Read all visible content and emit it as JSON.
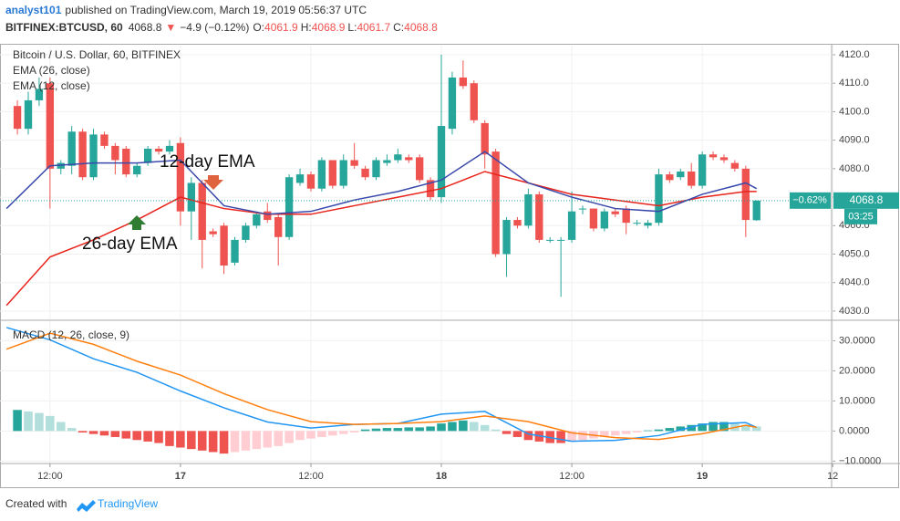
{
  "header": {
    "author": "analyst101",
    "published": "published on TradingView.com, March 19, 2019 05:56:37 UTC",
    "symbol": "BITFINEX:BTCUSD, 60",
    "arrow": "▼",
    "change": "−4.9 (−0.12%)",
    "ohlc_labels": [
      "O:",
      "H:",
      "L:",
      "C:"
    ]
  },
  "footer": {
    "created": "Created with",
    "brand": "TradingView"
  },
  "chart_data": [
    {
      "type": "candlestick",
      "title": "Bitcoin / U.S. Dollar, 60, BITFINEX",
      "up_color": "#26a69a",
      "down_color": "#ef5350",
      "annotations": [
        "12-day EMA",
        "26-day EMA"
      ],
      "last_change": "−0.62%",
      "countdown": "03:25",
      "x": [
        -3,
        -2,
        -1,
        0,
        1,
        2,
        3,
        4,
        5,
        6,
        7,
        8,
        9,
        10,
        11,
        12,
        13,
        14,
        15,
        16,
        17,
        18,
        19,
        20,
        21,
        22,
        23,
        24,
        25,
        26,
        27,
        28,
        29,
        30,
        31,
        32,
        33,
        34,
        35,
        36,
        37,
        38,
        39,
        40,
        41,
        42,
        43,
        44,
        45,
        46,
        47,
        48,
        49,
        50,
        51,
        52,
        53,
        54,
        55,
        56,
        57,
        58,
        59,
        60,
        61,
        62,
        63,
        64,
        65
      ],
      "open": [
        4102,
        4094,
        4104,
        4110,
        4080,
        4081,
        4093,
        4077,
        4092,
        4088,
        4087,
        4078,
        4082,
        4087,
        4086,
        4089,
        4065,
        4075,
        4058,
        4060,
        4047,
        4055,
        4060,
        4065,
        4063,
        4056,
        4075,
        4078,
        4073,
        4083,
        4074,
        4083,
        4080,
        4077,
        4082,
        4083,
        4084,
        4084,
        4076,
        4070,
        4094,
        4112,
        4110,
        4096,
        4086,
        4050,
        4062,
        4060,
        4071,
        4055,
        4055,
        4055,
        4066,
        4066,
        4059,
        4065,
        4066,
        4061,
        4060,
        4061,
        4078,
        4077,
        4079,
        4074,
        4085,
        4084,
        4082,
        4080,
        4061.9
      ],
      "high": [
        4104,
        4107,
        4112,
        4112,
        4083,
        4095,
        4094,
        4094,
        4093,
        4089,
        4088,
        4082,
        4088,
        4088,
        4090,
        4091,
        4077,
        4076,
        4059,
        4061,
        4056,
        4061,
        4065,
        4068,
        4064,
        4078,
        4080,
        4079,
        4084,
        4083,
        4085,
        4089,
        4081,
        4084,
        4085,
        4087,
        4085,
        4085,
        4077,
        4120,
        4114,
        4118,
        4111,
        4097,
        4087,
        4063,
        4063,
        4073,
        4072,
        4056,
        4056,
        4072,
        4067,
        4066,
        4066,
        4066,
        4067,
        4062,
        4062,
        4080,
        4079,
        4080,
        4082,
        4086,
        4086,
        4085,
        4083,
        4081,
        4068.9
      ],
      "low": [
        4092,
        4092,
        4102,
        4066,
        4078,
        4078,
        4076,
        4076,
        4087,
        4078,
        4077,
        4077,
        4081,
        4085,
        4085,
        4060,
        4055,
        4045,
        4056,
        4043,
        4046,
        4054,
        4059,
        4061,
        4046,
        4055,
        4074,
        4072,
        4072,
        4073,
        4073,
        4080,
        4076,
        4076,
        4081,
        4082,
        4082,
        4075,
        4069,
        4068,
        4092,
        4108,
        4096,
        4080,
        4049,
        4042,
        4059,
        4059,
        4054,
        4054,
        4035,
        4054,
        4064,
        4058,
        4058,
        4063,
        4057,
        4060,
        4059,
        4060,
        4075,
        4076,
        4073,
        4073,
        4083,
        4082,
        4079,
        4056,
        4061.7
      ],
      "close": [
        4094,
        4104,
        4108,
        4080,
        4082,
        4093,
        4077,
        4092,
        4088,
        4083,
        4078,
        4081,
        4087,
        4086,
        4088,
        4065,
        4075,
        4055,
        4057,
        4046,
        4055,
        4060,
        4064,
        4062,
        4056,
        4077,
        4078,
        4073,
        4083,
        4074,
        4083,
        4081,
        4077,
        4083,
        4083,
        4085,
        4083,
        4076,
        4070,
        4095,
        4112,
        4109,
        4097,
        4085,
        4050,
        4062,
        4060,
        4071,
        4055,
        4055,
        4055,
        4065,
        4066,
        4059,
        4065,
        4064,
        4061,
        4061,
        4061,
        4078,
        4076,
        4079,
        4074,
        4085,
        4084,
        4083,
        4080,
        4062,
        4068.8
      ],
      "series": [
        {
          "name": "EMA (26, close)",
          "color": "#e8231b",
          "x": [
            -4,
            0,
            4,
            8,
            12,
            16,
            20,
            24,
            28,
            32,
            36,
            40,
            44,
            48,
            52,
            56,
            60,
            64,
            65
          ],
          "values": [
            4032,
            4049,
            4055,
            4062,
            4070,
            4066,
            4064,
            4064,
            4067,
            4070,
            4073,
            4079,
            4075,
            4071,
            4069,
            4067,
            4070,
            4072,
            4072
          ]
        },
        {
          "name": "EMA (12, close)",
          "color": "#3949ab",
          "x": [
            -4,
            0,
            4,
            8,
            12,
            16,
            20,
            24,
            28,
            32,
            36,
            40,
            44,
            48,
            52,
            56,
            60,
            64,
            65
          ],
          "values": [
            4066,
            4081,
            4082,
            4082,
            4083,
            4067,
            4064,
            4065,
            4069,
            4072,
            4076,
            4086,
            4075,
            4070,
            4066,
            4065,
            4071,
            4075,
            4073
          ]
        }
      ],
      "xlim": [
        -4.6,
        71.9
      ],
      "ylim": [
        4027.1,
        4123.2
      ],
      "yticks": [
        {
          "value": 4030,
          "label": "4030.0"
        },
        {
          "value": 4040,
          "label": "4040.0"
        },
        {
          "value": 4050,
          "label": "4050.0"
        },
        {
          "value": 4060,
          "label": "4060.0"
        },
        {
          "value": 4070,
          "label": "4070.0"
        },
        {
          "value": 4080,
          "label": "4080.0"
        },
        {
          "value": 4090,
          "label": "4090.0"
        },
        {
          "value": 4100,
          "label": "4100.0"
        },
        {
          "value": 4110,
          "label": "4110.0"
        },
        {
          "value": 4120,
          "label": "4120.0"
        }
      ]
    },
    {
      "type": "macd",
      "title": "MACD (12, 26, close, 9)",
      "histogram": {
        "palette": [
          "#26a69a",
          "#b2dfdb",
          "#ef5350",
          "#ffcdd2"
        ],
        "x": [
          -3,
          -2,
          -1,
          0,
          1,
          2,
          3,
          4,
          5,
          6,
          7,
          8,
          9,
          10,
          11,
          12,
          13,
          14,
          15,
          16,
          17,
          18,
          19,
          20,
          21,
          22,
          23,
          24,
          25,
          26,
          27,
          28,
          29,
          30,
          31,
          32,
          33,
          34,
          35,
          36,
          37,
          38,
          39,
          40,
          41,
          42,
          43,
          44,
          45,
          46,
          47,
          48,
          49,
          50,
          51,
          52,
          53,
          54,
          55,
          56,
          57,
          58,
          59,
          60,
          61,
          62,
          63,
          64,
          65
        ],
        "values": [
          7,
          6.5,
          6,
          5,
          3,
          1,
          -0.5,
          -1,
          -1.5,
          -2,
          -2.5,
          -3,
          -3.5,
          -4,
          -5,
          -5.5,
          -6,
          -6.5,
          -7,
          -7.5,
          -7,
          -6.5,
          -6,
          -5.5,
          -5,
          -4,
          -3,
          -2.5,
          -2,
          -1.5,
          -1,
          -0.5,
          0.5,
          0.8,
          1,
          1,
          1.2,
          1.2,
          1.5,
          2.5,
          3,
          3.5,
          3,
          2,
          0.5,
          -1,
          -2,
          -3,
          -3.5,
          -4,
          -4,
          -3.5,
          -3,
          -2.5,
          -2,
          -1.5,
          -1,
          -0.5,
          0.2,
          0.5,
          1,
          1.5,
          2,
          2.5,
          3,
          3,
          2.5,
          2,
          1.5
        ]
      },
      "series": [
        {
          "name": "MACD",
          "color": "#2196f3",
          "x": [
            -4,
            0,
            4,
            8,
            12,
            16,
            20,
            24,
            28,
            32,
            36,
            40,
            44,
            48,
            52,
            56,
            60,
            64,
            65
          ],
          "values": [
            34.4,
            30.3,
            24,
            19.5,
            13.3,
            7.7,
            3,
            1,
            2.2,
            2.5,
            5.6,
            6.5,
            -1,
            -3.4,
            -3.1,
            -1.5,
            2.2,
            2.8,
            1.2
          ]
        },
        {
          "name": "Signal",
          "color": "#ff7f0e",
          "x": [
            -4,
            0,
            4,
            8,
            12,
            16,
            20,
            24,
            28,
            32,
            36,
            40,
            44,
            48,
            52,
            56,
            60,
            64,
            65
          ],
          "values": [
            27.2,
            32.5,
            28.8,
            23.2,
            18.6,
            12.4,
            7.1,
            3.1,
            2.2,
            2.5,
            3.1,
            5,
            3.1,
            -0.6,
            -2.2,
            -2.8,
            -0.9,
            1.9,
            1.2
          ]
        }
      ],
      "xlim": [
        -4.6,
        71.9
      ],
      "ylim": [
        -10.5,
        36.5
      ],
      "yticks": [
        {
          "value": -10,
          "label": "−10.0000"
        },
        {
          "value": 0,
          "label": "0.0000"
        },
        {
          "value": 10,
          "label": "10.0000"
        },
        {
          "value": 20,
          "label": "20.0000"
        },
        {
          "value": 30,
          "label": "30.0000"
        }
      ],
      "xticks": [
        {
          "value": 0,
          "label": "12:00"
        },
        {
          "value": 12,
          "label": "17"
        },
        {
          "value": 24,
          "label": "12:00"
        },
        {
          "value": 36,
          "label": "18"
        },
        {
          "value": 48,
          "label": "12:00"
        },
        {
          "value": 60,
          "label": "19"
        },
        {
          "value": 72,
          "label": "12"
        }
      ]
    }
  ]
}
